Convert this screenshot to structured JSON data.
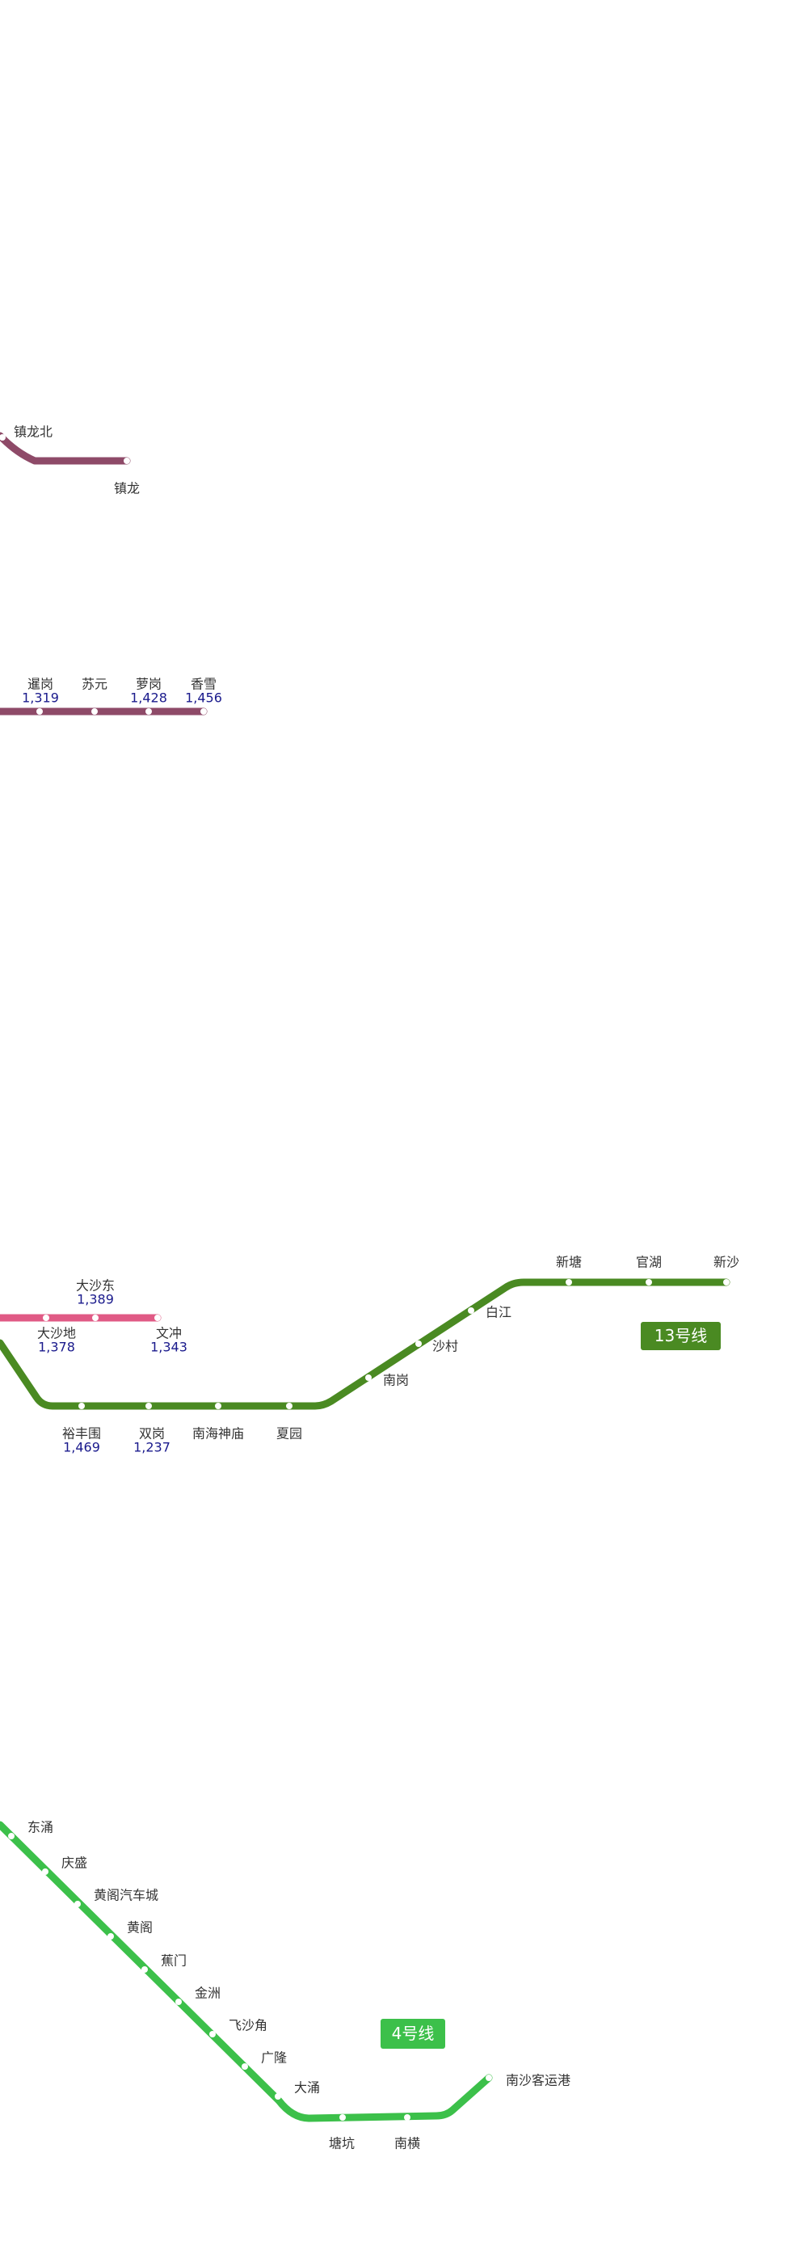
{
  "lines": [
    {
      "stations": [
        {
          "name": "镇龙北"
        },
        {
          "name": "镇龙"
        }
      ]
    },
    {
      "stations": [
        {
          "name": "暹岗",
          "count": "1,319"
        },
        {
          "name": "苏元"
        },
        {
          "name": "萝岗",
          "count": "1,428"
        },
        {
          "name": "香雪",
          "count": "1,456"
        }
      ]
    },
    {
      "stations": [
        {
          "name": "大沙东",
          "count": "1,389"
        },
        {
          "name": "大沙地",
          "count": "1,378"
        },
        {
          "name": "文冲",
          "count": "1,343"
        }
      ]
    },
    {
      "badge": "13号线",
      "stations": [
        {
          "name": "裕丰围",
          "count": "1,469"
        },
        {
          "name": "双岗",
          "count": "1,237"
        },
        {
          "name": "南海神庙"
        },
        {
          "name": "夏园"
        },
        {
          "name": "南岗"
        },
        {
          "name": "沙村"
        },
        {
          "name": "白江"
        },
        {
          "name": "新塘"
        },
        {
          "name": "官湖"
        },
        {
          "name": "新沙"
        }
      ]
    },
    {
      "badge": "4号线",
      "stations": [
        {
          "name": "东涌"
        },
        {
          "name": "庆盛"
        },
        {
          "name": "黄阁汽车城"
        },
        {
          "name": "黄阁"
        },
        {
          "name": "蕉门"
        },
        {
          "name": "金洲"
        },
        {
          "name": "飞沙角"
        },
        {
          "name": "广隆"
        },
        {
          "name": "大涌"
        },
        {
          "name": "塘坑"
        },
        {
          "name": "南横"
        },
        {
          "name": "南沙客运港"
        }
      ]
    }
  ]
}
